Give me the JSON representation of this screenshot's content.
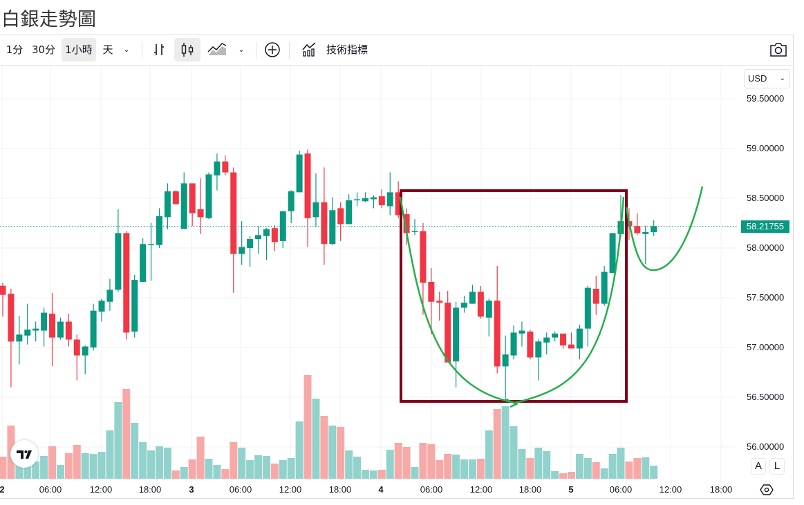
{
  "page": {
    "title": "白銀走勢圖"
  },
  "toolbar": {
    "intervals": [
      "1分",
      "30分",
      "1小時",
      "天"
    ],
    "active_interval": "1小時",
    "indicators_label": "技術指標",
    "icons": [
      "chevron-down-icon",
      "bar-chart-icon",
      "candlestick-icon",
      "area-chart-icon",
      "chevron-down-icon",
      "plus-circle-icon",
      "indicators-icon",
      "camera-icon"
    ],
    "active_chart_type": "candlestick"
  },
  "price_axis": {
    "currency": "USD",
    "labels": [
      "59.50000",
      "59.00000",
      "58.50000",
      "58.00000",
      "57.50000",
      "57.00000",
      "56.50000",
      "56.00000"
    ],
    "current_price": "58.21755",
    "auto_label": "A",
    "log_label": "L"
  },
  "time_axis": {
    "labels": [
      "2",
      "06:00",
      "12:00",
      "18:00",
      "3",
      "06:00",
      "12:00",
      "18:00",
      "4",
      "06:00",
      "12:00",
      "18:00",
      "5",
      "06:00",
      "12:00",
      "18:00"
    ],
    "bold": [
      true,
      false,
      false,
      false,
      true,
      false,
      false,
      false,
      true,
      false,
      false,
      false,
      true,
      false,
      false,
      false
    ]
  },
  "colors": {
    "up": "#089981",
    "down": "#f23645",
    "up_volume": "#92d2cc",
    "down_volume": "#f7a9a7",
    "box": "#80001a",
    "annotation": "#22b04a"
  },
  "chart_data": {
    "type": "candlestick",
    "interval": "1小時",
    "ylim": [
      55.8,
      59.85
    ],
    "current_price": 58.21755,
    "grid": true,
    "ohlc": [
      [
        57.62,
        57.65,
        57.31,
        57.53
      ],
      [
        57.54,
        57.59,
        56.6,
        57.06
      ],
      [
        57.06,
        57.32,
        56.83,
        57.13
      ],
      [
        57.12,
        57.44,
        57.03,
        57.18
      ],
      [
        57.17,
        57.26,
        57.06,
        57.19
      ],
      [
        57.17,
        57.4,
        57.01,
        57.35
      ],
      [
        57.34,
        57.55,
        56.81,
        57.1
      ],
      [
        57.1,
        57.3,
        57.08,
        57.26
      ],
      [
        57.26,
        57.34,
        57.01,
        57.08
      ],
      [
        57.08,
        57.13,
        56.67,
        56.92
      ],
      [
        56.92,
        57.02,
        56.73,
        57.01
      ],
      [
        57.0,
        57.44,
        56.97,
        57.37
      ],
      [
        57.36,
        57.49,
        57.26,
        57.47
      ],
      [
        57.46,
        57.69,
        57.37,
        57.58
      ],
      [
        57.58,
        58.39,
        57.56,
        58.15
      ],
      [
        58.15,
        58.17,
        57.08,
        57.15
      ],
      [
        57.16,
        57.73,
        57.1,
        57.68
      ],
      [
        57.66,
        58.1,
        57.66,
        58.04
      ],
      [
        58.03,
        58.25,
        57.67,
        58.04
      ],
      [
        58.03,
        58.4,
        58.0,
        58.32
      ],
      [
        58.31,
        58.65,
        58.19,
        58.57
      ],
      [
        58.57,
        58.58,
        58.44,
        58.44
      ],
      [
        58.19,
        58.76,
        58.19,
        58.65
      ],
      [
        58.65,
        58.65,
        58.22,
        58.35
      ],
      [
        58.39,
        58.7,
        58.14,
        58.31
      ],
      [
        58.3,
        58.76,
        58.29,
        58.74
      ],
      [
        58.73,
        58.95,
        58.58,
        58.87
      ],
      [
        58.87,
        58.93,
        58.73,
        58.76
      ],
      [
        58.76,
        58.81,
        57.55,
        57.94
      ],
      [
        57.94,
        58.27,
        57.83,
        58.01
      ],
      [
        58.0,
        58.12,
        57.81,
        58.09
      ],
      [
        58.09,
        58.22,
        57.94,
        58.13
      ],
      [
        58.12,
        58.2,
        57.88,
        58.19
      ],
      [
        58.2,
        58.23,
        57.97,
        58.06
      ],
      [
        58.07,
        58.37,
        58.0,
        58.37
      ],
      [
        58.37,
        58.58,
        58.25,
        58.57
      ],
      [
        58.56,
        58.98,
        58.56,
        58.94
      ],
      [
        58.95,
        58.99,
        58.01,
        58.3
      ],
      [
        58.31,
        58.75,
        58.21,
        58.46
      ],
      [
        58.46,
        58.81,
        57.83,
        58.04
      ],
      [
        58.04,
        58.51,
        58.03,
        58.38
      ],
      [
        58.4,
        58.46,
        58.07,
        58.24
      ],
      [
        58.24,
        58.54,
        58.24,
        58.48
      ],
      [
        58.48,
        58.56,
        58.42,
        58.49
      ],
      [
        58.47,
        58.56,
        58.46,
        58.5
      ],
      [
        58.49,
        58.53,
        58.4,
        58.51
      ],
      [
        58.52,
        58.59,
        58.4,
        58.43
      ],
      [
        58.42,
        58.76,
        58.33,
        58.56
      ],
      [
        58.56,
        58.67,
        58.3,
        58.33
      ],
      [
        58.34,
        58.4,
        58.03,
        58.15
      ],
      [
        58.16,
        58.29,
        58.13,
        58.17
      ],
      [
        58.17,
        58.25,
        57.33,
        57.65
      ],
      [
        57.66,
        57.8,
        57.13,
        57.46
      ],
      [
        57.47,
        57.56,
        57.27,
        57.45
      ],
      [
        57.45,
        57.57,
        56.85,
        56.85
      ],
      [
        56.86,
        57.46,
        56.6,
        57.4
      ],
      [
        57.4,
        57.52,
        57.35,
        57.45
      ],
      [
        57.44,
        57.63,
        57.44,
        57.56
      ],
      [
        57.56,
        57.62,
        57.29,
        57.31
      ],
      [
        57.3,
        57.49,
        57.11,
        57.47
      ],
      [
        57.47,
        57.82,
        56.74,
        56.81
      ],
      [
        56.81,
        57.12,
        56.47,
        56.93
      ],
      [
        56.92,
        57.22,
        56.88,
        57.15
      ],
      [
        57.14,
        57.26,
        57.01,
        57.17
      ],
      [
        57.16,
        57.18,
        56.88,
        56.9
      ],
      [
        56.9,
        57.08,
        56.67,
        57.06
      ],
      [
        57.05,
        57.15,
        56.93,
        57.1
      ],
      [
        57.1,
        57.16,
        57.06,
        57.14
      ],
      [
        57.14,
        57.14,
        56.99,
        57.02
      ],
      [
        57.03,
        57.15,
        56.99,
        56.99
      ],
      [
        56.99,
        57.23,
        56.88,
        57.19
      ],
      [
        57.19,
        57.62,
        57.01,
        57.6
      ],
      [
        57.59,
        57.72,
        57.33,
        57.44
      ],
      [
        57.44,
        57.82,
        57.42,
        57.76
      ],
      [
        57.75,
        58.15,
        57.75,
        58.15
      ],
      [
        58.14,
        58.53,
        58.11,
        58.27
      ],
      [
        58.27,
        58.4,
        58.08,
        58.22
      ],
      [
        58.22,
        58.35,
        58.13,
        58.15
      ],
      [
        58.14,
        58.22,
        57.84,
        58.16
      ],
      [
        58.16,
        58.28,
        58.12,
        58.22
      ]
    ],
    "volume_relative": [
      32,
      77,
      25,
      20,
      25,
      33,
      47,
      20,
      37,
      49,
      37,
      36,
      39,
      70,
      111,
      130,
      81,
      53,
      41,
      47,
      45,
      12,
      17,
      28,
      61,
      29,
      20,
      14,
      53,
      45,
      27,
      34,
      33,
      22,
      27,
      30,
      83,
      150,
      116,
      91,
      77,
      75,
      41,
      32,
      13,
      12,
      13,
      42,
      52,
      46,
      17,
      52,
      50,
      27,
      36,
      35,
      28,
      28,
      29,
      70,
      101,
      105,
      76,
      43,
      30,
      45,
      40,
      11,
      8,
      10,
      36,
      30,
      24,
      15,
      36,
      45,
      25,
      30,
      31,
      19
    ]
  }
}
